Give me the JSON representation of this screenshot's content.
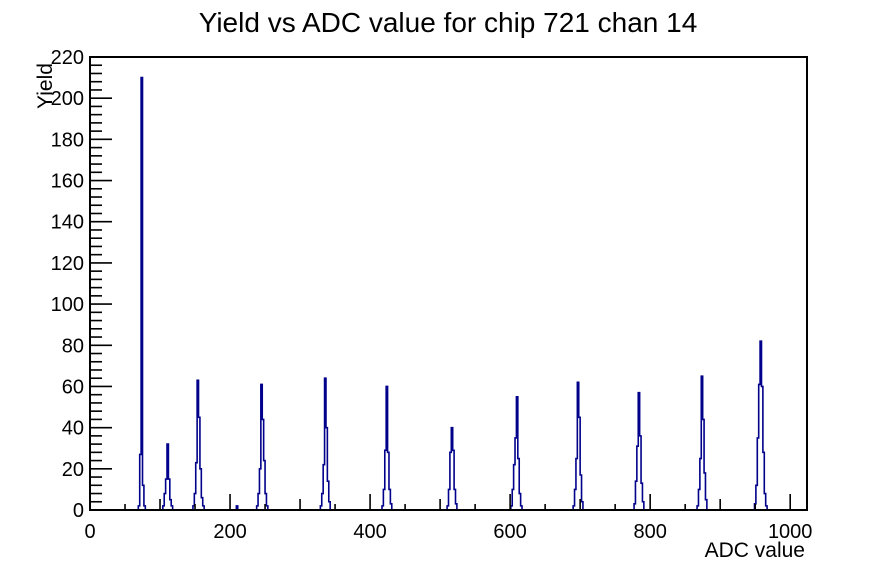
{
  "title": "Yield vs ADC value for chip 721 chan 14",
  "chart_data": {
    "type": "bar",
    "style": "root-histogram-outline",
    "title": "Yield vs ADC value for chip 721 chan 14",
    "xlabel": "ADC value",
    "ylabel": "Yield",
    "xlim": [
      0,
      1024
    ],
    "ylim": [
      0,
      220
    ],
    "grid": false,
    "legend": false,
    "background_color": "#ffffff",
    "axis_color": "#000000",
    "line_color": "#00008b",
    "x_tick_values": [
      0,
      200,
      400,
      600,
      800,
      1000
    ],
    "x_secondary_tick_step": 100,
    "x_minor_tick_step": 50,
    "y_tick_values": [
      0,
      20,
      40,
      60,
      80,
      100,
      120,
      140,
      160,
      180,
      200,
      220
    ],
    "y_minor_tick_step": 4,
    "bin_width": 2,
    "peaks_summary": [
      [
        74,
        210
      ],
      [
        111,
        32
      ],
      [
        154,
        63
      ],
      [
        245,
        61
      ],
      [
        336,
        64
      ],
      [
        424,
        60
      ],
      [
        517,
        40
      ],
      [
        610,
        55
      ],
      [
        697,
        62
      ],
      [
        784,
        57
      ],
      [
        874,
        65
      ],
      [
        958,
        82
      ]
    ],
    "clusters": [
      {
        "center": 74,
        "peak": 210,
        "bins": [
          [
            70,
            2
          ],
          [
            72,
            27
          ],
          [
            74,
            210
          ],
          [
            76,
            12
          ],
          [
            78,
            2
          ]
        ]
      },
      {
        "center": 111,
        "peak": 32,
        "bins": [
          [
            105,
            2
          ],
          [
            107,
            8
          ],
          [
            109,
            15
          ],
          [
            111,
            32
          ],
          [
            113,
            15
          ],
          [
            115,
            5
          ],
          [
            117,
            2
          ]
        ]
      },
      {
        "center": 154,
        "peak": 63,
        "bins": [
          [
            148,
            2
          ],
          [
            150,
            8
          ],
          [
            152,
            23
          ],
          [
            154,
            63
          ],
          [
            156,
            45
          ],
          [
            158,
            20
          ],
          [
            160,
            6
          ],
          [
            162,
            2
          ]
        ]
      },
      {
        "center": 210,
        "peak": 2,
        "bins": [
          [
            210,
            2
          ]
        ]
      },
      {
        "center": 245,
        "peak": 61,
        "bins": [
          [
            239,
            2
          ],
          [
            241,
            8
          ],
          [
            243,
            20
          ],
          [
            245,
            61
          ],
          [
            247,
            44
          ],
          [
            249,
            24
          ],
          [
            251,
            8
          ],
          [
            253,
            2
          ]
        ]
      },
      {
        "center": 336,
        "peak": 64,
        "bins": [
          [
            330,
            2
          ],
          [
            332,
            8
          ],
          [
            334,
            22
          ],
          [
            336,
            64
          ],
          [
            338,
            40
          ],
          [
            340,
            14
          ],
          [
            342,
            4
          ]
        ]
      },
      {
        "center": 424,
        "peak": 60,
        "bins": [
          [
            418,
            2
          ],
          [
            420,
            10
          ],
          [
            422,
            29
          ],
          [
            424,
            60
          ],
          [
            426,
            28
          ],
          [
            428,
            10
          ],
          [
            430,
            3
          ]
        ]
      },
      {
        "center": 517,
        "peak": 40,
        "bins": [
          [
            511,
            2
          ],
          [
            513,
            10
          ],
          [
            515,
            28
          ],
          [
            517,
            40
          ],
          [
            519,
            29
          ],
          [
            521,
            10
          ],
          [
            523,
            3
          ]
        ]
      },
      {
        "center": 610,
        "peak": 55,
        "bins": [
          [
            602,
            2
          ],
          [
            604,
            10
          ],
          [
            606,
            22
          ],
          [
            608,
            35
          ],
          [
            610,
            55
          ],
          [
            612,
            25
          ],
          [
            614,
            8
          ],
          [
            616,
            2
          ]
        ]
      },
      {
        "center": 697,
        "peak": 62,
        "bins": [
          [
            691,
            2
          ],
          [
            693,
            10
          ],
          [
            695,
            25
          ],
          [
            697,
            62
          ],
          [
            699,
            45
          ],
          [
            701,
            17
          ],
          [
            703,
            4
          ]
        ]
      },
      {
        "center": 784,
        "peak": 57,
        "bins": [
          [
            778,
            3
          ],
          [
            780,
            14
          ],
          [
            782,
            31
          ],
          [
            784,
            57
          ],
          [
            786,
            36
          ],
          [
            788,
            13
          ],
          [
            790,
            4
          ]
        ]
      },
      {
        "center": 874,
        "peak": 65,
        "bins": [
          [
            868,
            2
          ],
          [
            870,
            10
          ],
          [
            872,
            25
          ],
          [
            874,
            65
          ],
          [
            876,
            44
          ],
          [
            878,
            18
          ],
          [
            880,
            5
          ]
        ]
      },
      {
        "center": 958,
        "peak": 82,
        "bins": [
          [
            950,
            3
          ],
          [
            952,
            12
          ],
          [
            954,
            35
          ],
          [
            956,
            61
          ],
          [
            958,
            82
          ],
          [
            960,
            60
          ],
          [
            962,
            28
          ],
          [
            964,
            8
          ],
          [
            966,
            2
          ]
        ]
      }
    ]
  }
}
